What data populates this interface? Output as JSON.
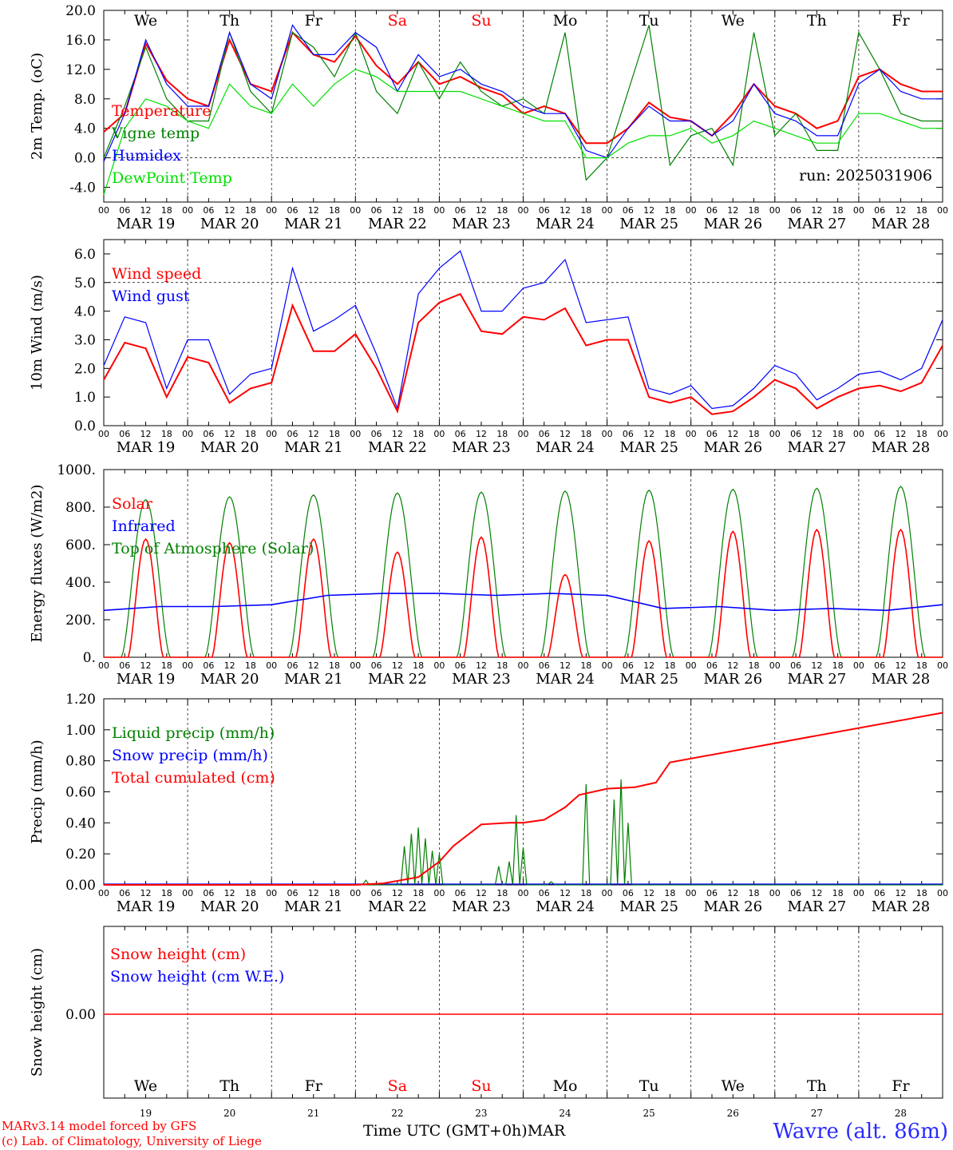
{
  "footer": {
    "model": "MARv3.14 model forced by GFS",
    "lab": "(c) Lab. of Climatology, University of Liege",
    "xlabel": "Time UTC (GMT+0h)MAR",
    "station": "Wavre (alt. 86m)"
  },
  "days": {
    "dates": [
      "MAR 19",
      "MAR 20",
      "MAR 21",
      "MAR 22",
      "MAR 23",
      "MAR 24",
      "MAR 25",
      "MAR 26",
      "MAR 27",
      "MAR 28"
    ],
    "weekdays": [
      "We",
      "Th",
      "Fr",
      "Sa",
      "Su",
      "Mo",
      "Tu",
      "We",
      "Th",
      "Fr"
    ],
    "day_numbers": [
      "19",
      "20",
      "21",
      "22",
      "23",
      "24",
      "25",
      "26",
      "27",
      "28"
    ],
    "weekend_color": "#ff0000",
    "hour_ticks": [
      "00",
      "06",
      "12",
      "18"
    ]
  },
  "colors": {
    "red": "#ff0000",
    "green": "#008000",
    "blue": "#0000ff",
    "lightgreen": "#00e000"
  },
  "chart_data": [
    {
      "type": "line",
      "ylabel": "2m Temp. (oC)",
      "ylim": [
        -6,
        20
      ],
      "yticks": [
        "20.0",
        "16.0",
        "12.0",
        "8.0",
        "4.0",
        "0.0",
        "-4.0"
      ],
      "hline": 0,
      "annotation": "run: 2025031906",
      "x_hours": [
        0,
        6,
        12,
        18,
        24,
        30,
        36,
        42,
        48,
        54,
        60,
        66,
        72,
        78,
        84,
        90,
        96,
        102,
        108,
        114,
        120,
        126,
        132,
        138,
        144,
        150,
        156,
        162,
        168,
        174,
        180,
        186,
        192,
        198,
        204,
        210,
        216,
        222,
        228,
        234,
        240
      ],
      "series": [
        {
          "name": "Temperature",
          "color": "#ff0000",
          "values": [
            3.5,
            6,
            15.5,
            10.5,
            8,
            7,
            16,
            10,
            9,
            17,
            14,
            13,
            16.5,
            12.5,
            10,
            13,
            10,
            11,
            9.5,
            8.5,
            6,
            7,
            6,
            2,
            2,
            4,
            7.5,
            5.5,
            5,
            3,
            6,
            10,
            7,
            6,
            4,
            5,
            11,
            12,
            10,
            9,
            9
          ]
        },
        {
          "name": "Vigne temp",
          "color": "#008000",
          "values": [
            0,
            7,
            15,
            8,
            5,
            5,
            17,
            9,
            6,
            17,
            15,
            11,
            17,
            9,
            6,
            13,
            8,
            13,
            9,
            7,
            8,
            6,
            17,
            -3,
            0,
            9,
            18,
            -1,
            3,
            4,
            -1,
            17,
            3,
            6,
            1,
            1,
            17,
            12,
            6,
            5,
            5
          ]
        },
        {
          "name": "Humidex",
          "color": "#0000ff",
          "values": [
            -0.5,
            6,
            16,
            10,
            7,
            7,
            17,
            10,
            8,
            18,
            14,
            14,
            17,
            15,
            9,
            14,
            11,
            12,
            10,
            9,
            7,
            6,
            6,
            1,
            0,
            4,
            7,
            5,
            5,
            3,
            5,
            10,
            6,
            5,
            3,
            3,
            10,
            12,
            9,
            8,
            8
          ]
        },
        {
          "name": "DewPoint Temp",
          "color": "#00e000",
          "values": [
            -5,
            4,
            8,
            7,
            5,
            4,
            10,
            7,
            6,
            10,
            7,
            10,
            12,
            11,
            9,
            9,
            9,
            9,
            8,
            7,
            6,
            5,
            5,
            0,
            0,
            2,
            3,
            3,
            4,
            2,
            3,
            5,
            4,
            3,
            2,
            2,
            6,
            6,
            5,
            4,
            4
          ]
        }
      ]
    },
    {
      "type": "line",
      "ylabel": "10m Wind (m/s)",
      "ylim": [
        0,
        6.5
      ],
      "yticks": [
        "6.0",
        "5.0",
        "4.0",
        "3.0",
        "2.0",
        "1.0",
        "0.0"
      ],
      "hline": 5,
      "x_hours": [
        0,
        6,
        12,
        18,
        24,
        30,
        36,
        42,
        48,
        54,
        60,
        66,
        72,
        78,
        84,
        90,
        96,
        102,
        108,
        114,
        120,
        126,
        132,
        138,
        144,
        150,
        156,
        162,
        168,
        174,
        180,
        186,
        192,
        198,
        204,
        210,
        216,
        222,
        228,
        234,
        240
      ],
      "series": [
        {
          "name": "Wind speed",
          "color": "#ff0000",
          "values": [
            1.6,
            2.9,
            2.7,
            1.0,
            2.4,
            2.2,
            0.8,
            1.3,
            1.5,
            4.2,
            2.6,
            2.6,
            3.2,
            2.0,
            0.5,
            3.6,
            4.3,
            4.6,
            3.3,
            3.2,
            3.8,
            3.7,
            4.1,
            2.8,
            3.0,
            3.0,
            1.0,
            0.8,
            1.0,
            0.4,
            0.5,
            1.0,
            1.6,
            1.3,
            0.6,
            1.0,
            1.3,
            1.4,
            1.2,
            1.5,
            2.8
          ]
        },
        {
          "name": "Wind gust",
          "color": "#0000ff",
          "values": [
            2.1,
            3.8,
            3.6,
            1.3,
            3.0,
            3.0,
            1.1,
            1.8,
            2.0,
            5.5,
            3.3,
            3.7,
            4.2,
            2.5,
            0.6,
            4.6,
            5.5,
            6.1,
            4.0,
            4.0,
            4.8,
            5.0,
            5.8,
            3.6,
            3.7,
            3.8,
            1.3,
            1.1,
            1.4,
            0.6,
            0.7,
            1.3,
            2.1,
            1.8,
            0.9,
            1.3,
            1.8,
            1.9,
            1.6,
            2.0,
            3.7
          ]
        }
      ]
    },
    {
      "type": "line",
      "ylabel": "Energy fluxes (W/m2)",
      "ylim": [
        0,
        1000
      ],
      "yticks": [
        "1000.",
        "800.",
        "600.",
        "400.",
        "200.",
        "0."
      ],
      "series": [
        {
          "name": "Solar",
          "color": "#ff0000",
          "peaks": [
            630,
            610,
            630,
            560,
            640,
            440,
            620,
            670,
            680,
            680
          ]
        },
        {
          "name": "Infrared",
          "color": "#0000ff",
          "day_values": [
            250,
            270,
            270,
            280,
            330,
            340,
            340,
            330,
            340,
            330,
            260,
            270,
            250,
            260,
            250,
            280
          ]
        },
        {
          "name": "Top of Atmosphere (Solar)",
          "color": "#008000",
          "peaks": [
            840,
            855,
            865,
            875,
            880,
            885,
            890,
            895,
            900,
            910
          ]
        }
      ]
    },
    {
      "type": "line",
      "ylabel": "Precip (mm/h)",
      "ylim": [
        0,
        1.2
      ],
      "yticks": [
        "1.20",
        "1.00",
        "0.80",
        "0.60",
        "0.40",
        "0.20",
        "0.00"
      ],
      "series": [
        {
          "name": "Liquid precip (mm/h)",
          "color": "#008000"
        },
        {
          "name": "Snow precip (mm/h)",
          "color": "#0000ff"
        },
        {
          "name": "Total cumulated (cm)",
          "color": "#ff0000",
          "x_hours": [
            0,
            72,
            80,
            90,
            96,
            100,
            108,
            116,
            120,
            126,
            132,
            136,
            144,
            152,
            158,
            162,
            240
          ],
          "values": [
            0,
            0,
            0.01,
            0.05,
            0.15,
            0.25,
            0.39,
            0.4,
            0.4,
            0.42,
            0.5,
            0.58,
            0.62,
            0.63,
            0.66,
            0.79,
            1.11
          ]
        }
      ],
      "liquid_events": [
        {
          "hour": 75,
          "peak": 0.03
        },
        {
          "hour": 86,
          "peak": 0.25
        },
        {
          "hour": 88,
          "peak": 0.33
        },
        {
          "hour": 90,
          "peak": 0.37
        },
        {
          "hour": 92,
          "peak": 0.3
        },
        {
          "hour": 94,
          "peak": 0.22
        },
        {
          "hour": 96,
          "peak": 0.2
        },
        {
          "hour": 113,
          "peak": 0.12
        },
        {
          "hour": 116,
          "peak": 0.15
        },
        {
          "hour": 118,
          "peak": 0.45
        },
        {
          "hour": 120,
          "peak": 0.24
        },
        {
          "hour": 128,
          "peak": 0.02
        },
        {
          "hour": 138,
          "peak": 0.65
        },
        {
          "hour": 146,
          "peak": 0.55
        },
        {
          "hour": 148,
          "peak": 0.68
        },
        {
          "hour": 150,
          "peak": 0.4
        }
      ]
    },
    {
      "type": "line",
      "ylabel": "Snow height (cm)",
      "yticks": [
        "0.00"
      ],
      "series": [
        {
          "name": "Snow height (cm)",
          "color": "#ff0000",
          "values": [
            0,
            0
          ]
        },
        {
          "name": "Snow height (cm W.E.)",
          "color": "#0000ff",
          "values": [
            0,
            0
          ]
        }
      ]
    }
  ]
}
